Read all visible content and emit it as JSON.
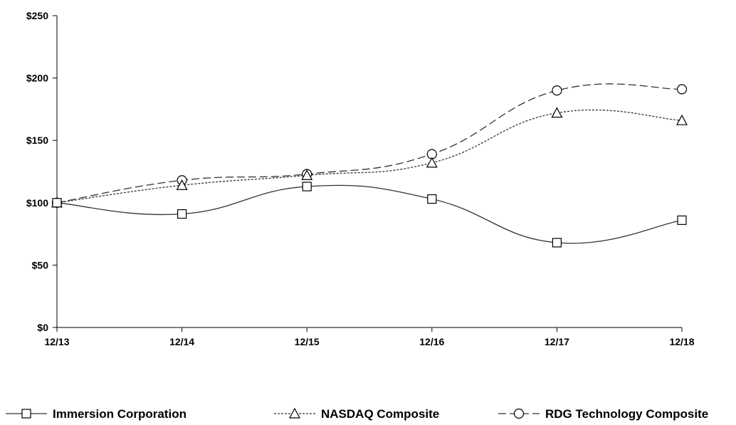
{
  "chart_data": {
    "type": "line",
    "title": "",
    "xlabel": "",
    "ylabel": "",
    "categories": [
      "12/13",
      "12/14",
      "12/15",
      "12/16",
      "12/17",
      "12/18"
    ],
    "y_tick_labels": [
      "$0",
      "$50",
      "$100",
      "$150",
      "$200",
      "$250"
    ],
    "y_ticks": [
      0,
      50,
      100,
      150,
      200,
      250
    ],
    "ylim": [
      0,
      250
    ],
    "grid": false,
    "legend_position": "bottom",
    "series": [
      {
        "name": "Immersion Corporation",
        "values": [
          100,
          91,
          113,
          103,
          68,
          86
        ],
        "marker": "square",
        "dash": "solid"
      },
      {
        "name": "NASDAQ Composite",
        "values": [
          100,
          114,
          122,
          132,
          172,
          166
        ],
        "marker": "triangle",
        "dash": "dotted"
      },
      {
        "name": "RDG Technology Composite",
        "values": [
          100,
          118,
          123,
          139,
          190,
          191
        ],
        "marker": "circle",
        "dash": "dashed"
      }
    ]
  }
}
